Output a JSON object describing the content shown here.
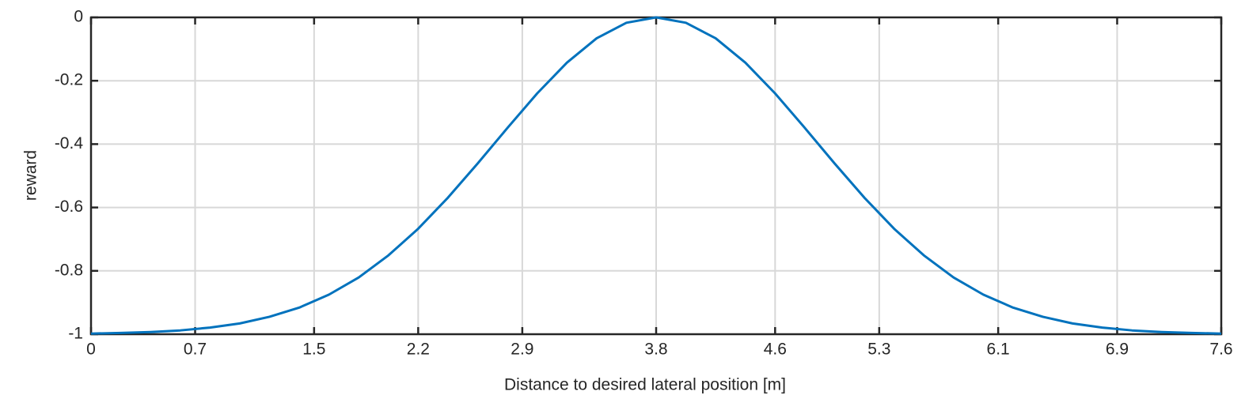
{
  "chart_data": {
    "type": "line",
    "x_label": "Distance to desired lateral position [m]",
    "y_label": "reward",
    "x": [
      0,
      0.2,
      0.4,
      0.6,
      0.8,
      1.0,
      1.2,
      1.4,
      1.6,
      1.8,
      2.0,
      2.2,
      2.4,
      2.6,
      2.8,
      3.0,
      3.2,
      3.4,
      3.6,
      3.8,
      4.0,
      4.2,
      4.4,
      4.6,
      4.8,
      5.0,
      5.2,
      5.4,
      5.6,
      5.8,
      6.0,
      6.2,
      6.4,
      6.6,
      6.8,
      7.0,
      7.2,
      7.4,
      7.6
    ],
    "series": [
      {
        "color": "#0072bd",
        "values": [
          -0.998,
          -0.996,
          -0.993,
          -0.988,
          -0.979,
          -0.966,
          -0.945,
          -0.916,
          -0.875,
          -0.821,
          -0.751,
          -0.667,
          -0.569,
          -0.461,
          -0.349,
          -0.24,
          -0.143,
          -0.066,
          -0.017,
          0,
          -0.017,
          -0.066,
          -0.143,
          -0.24,
          -0.349,
          -0.461,
          -0.569,
          -0.667,
          -0.751,
          -0.821,
          -0.875,
          -0.916,
          -0.945,
          -0.966,
          -0.979,
          -0.988,
          -0.993,
          -0.996,
          -0.998
        ]
      }
    ],
    "xlim": [
      0,
      7.6
    ],
    "xticks": [
      0,
      0.7,
      1.5,
      2.2,
      2.9,
      3.8,
      4.6,
      5.3,
      6.1,
      6.9,
      7.6
    ],
    "ylim": [
      -1,
      0
    ],
    "yticks": [
      0,
      -0.2,
      -0.4,
      -0.6,
      -0.8,
      -1
    ],
    "grid": true
  }
}
